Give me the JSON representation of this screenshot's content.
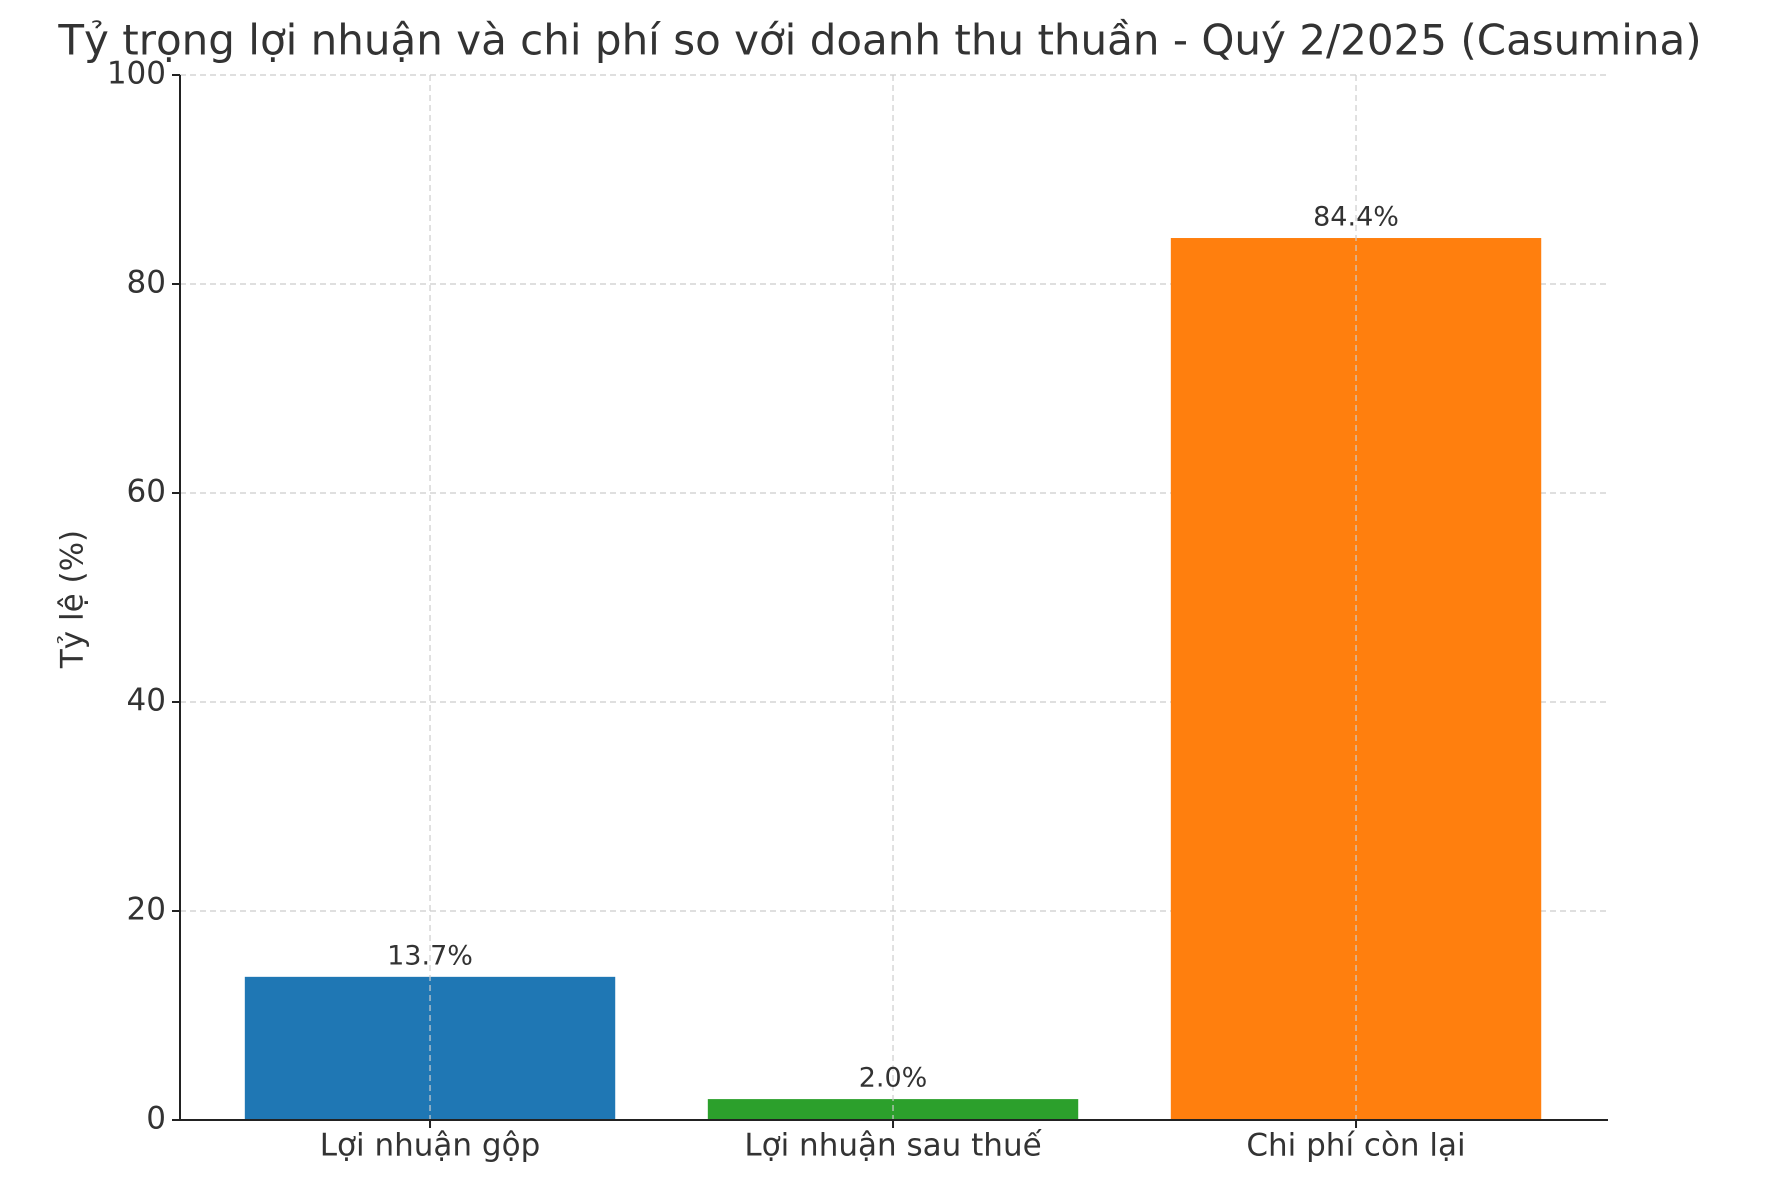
{
  "chart_data": {
    "type": "bar",
    "title": "Tỷ trọng lợi nhuận và chi phí so với doanh thu thuần - Quý 2/2025 (Casumina)",
    "y_label": "Tỷ lệ (%)",
    "categories": [
      "Lợi nhuận gộp",
      "Lợi nhuận sau thuế",
      "Chi phí còn lại"
    ],
    "values": [
      13.7,
      2.0,
      84.4
    ],
    "value_labels": [
      "13.7%",
      "2.0%",
      "84.4%"
    ],
    "colors": [
      "#1f77b4",
      "#2ca02c",
      "#ff7f0e"
    ],
    "ylim": [
      0,
      100
    ],
    "yticks": [
      0,
      20,
      40,
      60,
      80,
      100
    ],
    "grid": true
  }
}
